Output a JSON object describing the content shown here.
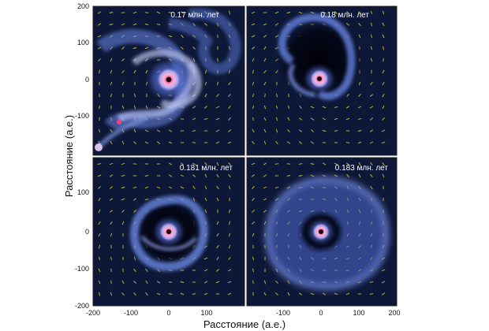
{
  "figure": {
    "xlabel": "Расстояние (а.е.)",
    "ylabel": "Расстояние (а.е.)",
    "x_ticks_left": [
      "-200",
      "-100",
      "0",
      "100"
    ],
    "x_ticks_right": [
      "-100",
      "0",
      "100",
      "200"
    ],
    "y_ticks_top": [
      "200",
      "100",
      "0",
      "-100"
    ],
    "y_ticks_bottom": [
      "100",
      "0",
      "-100",
      "-200"
    ]
  },
  "panels": [
    {
      "time_label": "0.17 млн. лет",
      "scene": "spiral-arms-with-fragments"
    },
    {
      "time_label": "0.18 млн. лет",
      "scene": "ring-with-loop"
    },
    {
      "time_label": "0.181 млн. лет",
      "scene": "compact-ring"
    },
    {
      "time_label": "0.183 млн. лет",
      "scene": "wide-disk"
    }
  ],
  "colors": {
    "background": "#0d1738",
    "gas": "#4f6fd6",
    "core": "#f0a0c8",
    "vectors": "#e8e23a"
  }
}
